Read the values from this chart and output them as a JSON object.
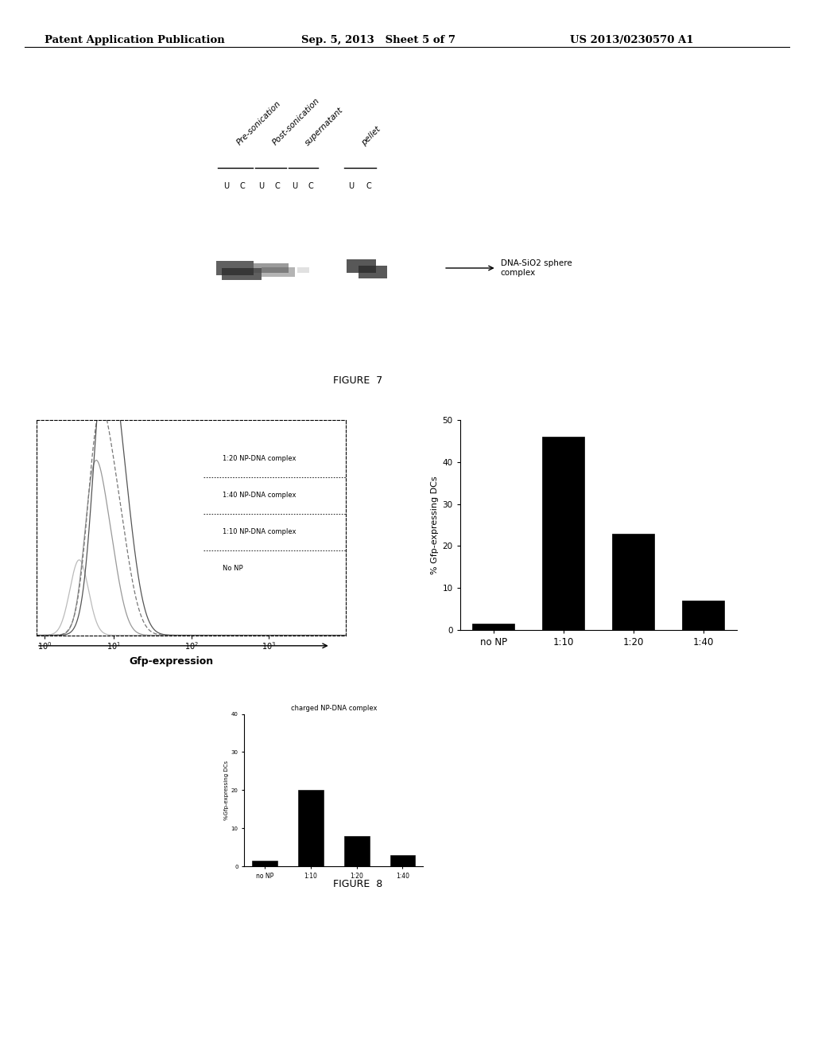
{
  "header_left": "Patent Application Publication",
  "header_mid": "Sep. 5, 2013   Sheet 5 of 7",
  "header_right": "US 2013/0230570 A1",
  "figure7_caption": "FIGURE  7",
  "figure8_caption": "FIGURE  8",
  "gel_label": "DNA-SiO2 sphere\ncomplex",
  "gel_column_labels": [
    "Pre-sonication",
    "Post-sonication",
    "supernatant",
    "pellet"
  ],
  "gel_row_labels": [
    "U",
    "C",
    "U",
    "C",
    "U",
    "C",
    "U",
    "C"
  ],
  "flow_legend": [
    "1:20 NP-DNA complex",
    "1:40 NP-DNA complex",
    "1:10 NP-DNA complex",
    "No NP"
  ],
  "flow_xlabel": "Gfp-expression",
  "bar1_categories": [
    "no NP",
    "1:10",
    "1:20",
    "1:40"
  ],
  "bar1_values": [
    1.5,
    46,
    23,
    7
  ],
  "bar1_ylabel": "% Gfp-expressing DCs",
  "bar1_ylim": [
    0,
    50
  ],
  "bar1_yticks": [
    0,
    10,
    20,
    30,
    40,
    50
  ],
  "bar2_title": "charged NP-DNA complex",
  "bar2_categories": [
    "no NP",
    "1:10",
    "1:20",
    "1:40"
  ],
  "bar2_values": [
    1.5,
    20,
    8,
    3
  ],
  "bar2_ylabel": "%Gfp-expressing DCs",
  "bar2_ylim": [
    0,
    40
  ],
  "bar2_yticks": [
    0,
    10,
    20,
    30,
    40
  ],
  "bar_color": "#000000",
  "background_color": "#ffffff",
  "gel_bg": "#cccccc",
  "band_color": "#444444"
}
